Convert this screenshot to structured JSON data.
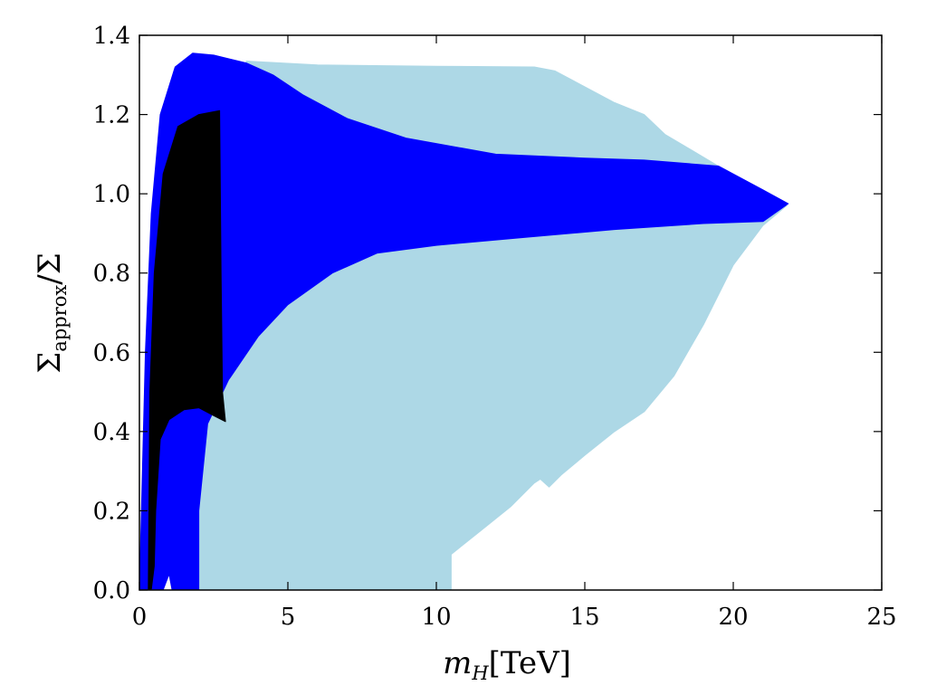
{
  "chart_data": {
    "type": "area",
    "xlabel": {
      "symbol": "m",
      "subscript": "H",
      "unit": "[TeV]"
    },
    "ylabel": {
      "symbol": "Σ",
      "subscript": "approx",
      "rest": "/Σ"
    },
    "xlim": [
      0,
      25
    ],
    "ylim": [
      0,
      1.4
    ],
    "xticks": [
      "0",
      "5",
      "10",
      "15",
      "20",
      "25"
    ],
    "yticks": [
      "0.0",
      "0.2",
      "0.4",
      "0.6",
      "0.8",
      "1.0",
      "1.2",
      "1.4"
    ],
    "grid": false,
    "legend": "none",
    "series": [
      {
        "color": "#add8e6",
        "outline": [
          [
            1.1,
            0.0
          ],
          [
            1.3,
            0.5
          ],
          [
            2.0,
            0.95
          ],
          [
            3.0,
            1.22
          ],
          [
            3.6,
            1.335
          ],
          [
            6.0,
            1.325
          ],
          [
            10.0,
            1.322
          ],
          [
            13.3,
            1.32
          ],
          [
            14.0,
            1.31
          ],
          [
            15.0,
            1.27
          ],
          [
            16.0,
            1.23
          ],
          [
            17.0,
            1.2
          ],
          [
            17.7,
            1.15
          ],
          [
            19.5,
            1.07
          ],
          [
            20.5,
            1.02
          ],
          [
            21.8,
            0.97
          ],
          [
            21.0,
            0.92
          ],
          [
            20.0,
            0.82
          ],
          [
            19.0,
            0.67
          ],
          [
            18.0,
            0.54
          ],
          [
            17.0,
            0.45
          ],
          [
            16.0,
            0.4
          ],
          [
            15.0,
            0.34
          ],
          [
            14.2,
            0.29
          ],
          [
            13.8,
            0.26
          ],
          [
            13.5,
            0.28
          ],
          [
            13.3,
            0.27
          ],
          [
            12.5,
            0.21
          ],
          [
            11.5,
            0.15
          ],
          [
            10.5,
            0.09
          ],
          [
            10.5,
            0.0
          ]
        ]
      },
      {
        "color": "#0000ff",
        "outline": [
          [
            0.0,
            0.0
          ],
          [
            0.2,
            0.6
          ],
          [
            0.4,
            0.95
          ],
          [
            0.7,
            1.2
          ],
          [
            1.2,
            1.32
          ],
          [
            1.8,
            1.355
          ],
          [
            2.5,
            1.35
          ],
          [
            3.6,
            1.33
          ],
          [
            4.5,
            1.3
          ],
          [
            5.5,
            1.25
          ],
          [
            7.0,
            1.19
          ],
          [
            9.0,
            1.14
          ],
          [
            12.0,
            1.1
          ],
          [
            15.0,
            1.09
          ],
          [
            17.0,
            1.085
          ],
          [
            19.5,
            1.07
          ],
          [
            21.0,
            1.01
          ],
          [
            21.85,
            0.975
          ],
          [
            21.0,
            0.93
          ],
          [
            19.0,
            0.925
          ],
          [
            16.0,
            0.91
          ],
          [
            13.0,
            0.89
          ],
          [
            10.0,
            0.87
          ],
          [
            8.0,
            0.85
          ],
          [
            6.5,
            0.8
          ],
          [
            5.0,
            0.72
          ],
          [
            4.0,
            0.64
          ],
          [
            3.0,
            0.53
          ],
          [
            2.3,
            0.42
          ],
          [
            2.0,
            0.2
          ],
          [
            2.0,
            0.0
          ],
          [
            1.1,
            0.0
          ],
          [
            1.0,
            0.04
          ],
          [
            0.8,
            0.0
          ]
        ]
      },
      {
        "color": "#000000",
        "outline": [
          [
            0.3,
            0.0
          ],
          [
            0.35,
            0.5
          ],
          [
            0.5,
            0.8
          ],
          [
            0.8,
            1.05
          ],
          [
            1.3,
            1.17
          ],
          [
            2.0,
            1.2
          ],
          [
            2.7,
            1.21
          ],
          [
            2.75,
            0.8
          ],
          [
            2.8,
            0.5
          ],
          [
            2.9,
            0.425
          ],
          [
            2.5,
            0.44
          ],
          [
            2.0,
            0.46
          ],
          [
            1.5,
            0.455
          ],
          [
            1.0,
            0.43
          ],
          [
            0.7,
            0.38
          ],
          [
            0.55,
            0.2
          ],
          [
            0.5,
            0.06
          ],
          [
            0.4,
            0.0
          ]
        ]
      }
    ]
  }
}
